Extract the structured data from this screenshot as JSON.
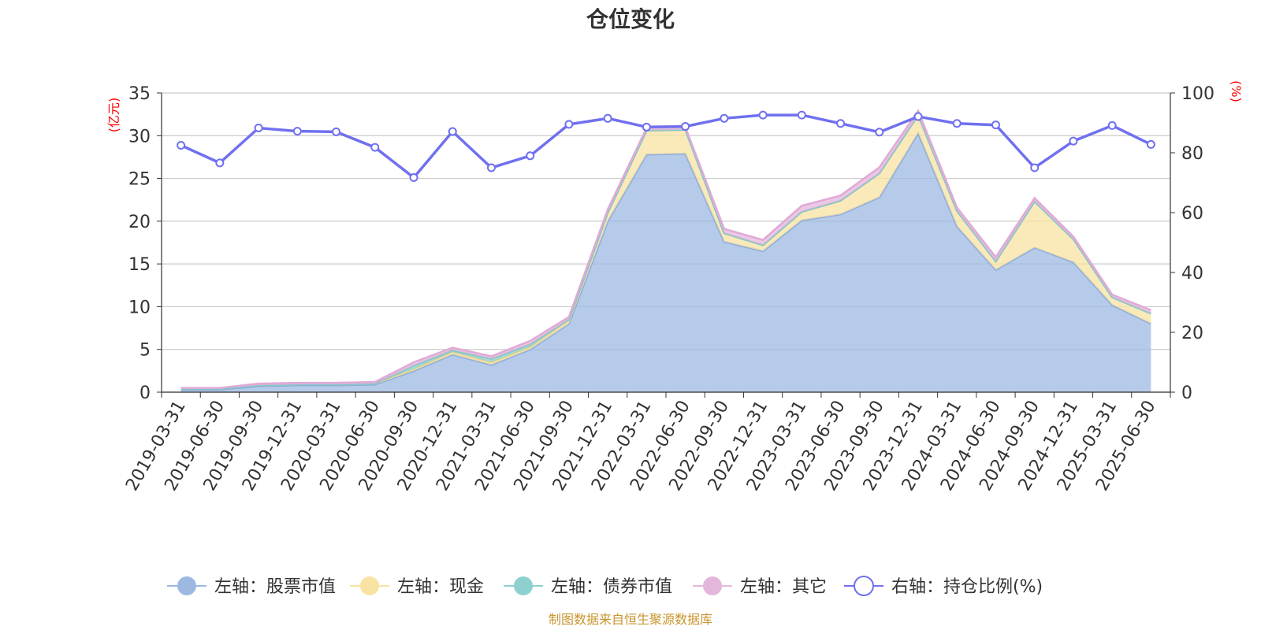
{
  "chart_data": {
    "type": "area",
    "title": "仓位变化",
    "left_axis_unit": "(亿元)",
    "right_axis_unit": "(%)",
    "ylim_left": [
      0,
      35
    ],
    "yticks_left": [
      "0",
      "5",
      "10",
      "15",
      "20",
      "25",
      "30",
      "35"
    ],
    "ylim_right": [
      0,
      100
    ],
    "yticks_right": [
      "0",
      "20",
      "40",
      "60",
      "80",
      "100"
    ],
    "grid": true,
    "legend_position": "bottom",
    "categories": [
      "2019-03-31",
      "2019-06-30",
      "2019-09-30",
      "2019-12-31",
      "2020-03-31",
      "2020-06-30",
      "2020-09-30",
      "2020-12-31",
      "2021-03-31",
      "2021-06-30",
      "2021-09-30",
      "2021-12-31",
      "2022-03-31",
      "2022-06-30",
      "2022-09-30",
      "2022-12-31",
      "2023-03-31",
      "2023-06-30",
      "2023-09-30",
      "2023-12-31",
      "2024-03-31",
      "2024-06-30",
      "2024-09-30",
      "2024-12-31",
      "2025-03-31",
      "2025-06-30"
    ],
    "series": [
      {
        "name": "左轴：股票市值",
        "axis": "left",
        "color": "#9db9e2",
        "values": [
          0.3,
          0.3,
          0.7,
          0.8,
          0.8,
          0.9,
          2.5,
          4.4,
          3.2,
          5.0,
          8.0,
          20.0,
          27.8,
          27.9,
          17.6,
          16.5,
          20.1,
          20.8,
          22.8,
          30.3,
          19.4,
          14.3,
          16.9,
          15.2,
          10.2,
          8.0
        ]
      },
      {
        "name": "左轴：现金",
        "axis": "left",
        "color": "#f8e3a3",
        "values": [
          0.1,
          0.1,
          0.1,
          0.1,
          0.1,
          0.1,
          0.2,
          0.3,
          0.3,
          0.3,
          0.4,
          1.0,
          2.8,
          2.8,
          1.0,
          0.7,
          1.0,
          1.6,
          2.8,
          2.1,
          1.8,
          1.0,
          5.4,
          2.7,
          0.9,
          1.2
        ]
      },
      {
        "name": "左轴：债券市值",
        "axis": "left",
        "color": "#8ed0d0",
        "values": [
          0.0,
          0.0,
          0.0,
          0.0,
          0.0,
          0.0,
          0.4,
          0.2,
          0.4,
          0.3,
          0.1,
          0.0,
          0.0,
          0.0,
          0.0,
          0.0,
          0.0,
          0.0,
          0.0,
          0.0,
          0.0,
          0.0,
          0.0,
          0.0,
          0.0,
          0.0
        ]
      },
      {
        "name": "左轴：其它",
        "axis": "left",
        "color": "#e5b6db",
        "values": [
          0.1,
          0.1,
          0.2,
          0.2,
          0.2,
          0.2,
          0.4,
          0.3,
          0.3,
          0.4,
          0.3,
          0.4,
          0.3,
          0.3,
          0.5,
          0.6,
          0.7,
          0.6,
          0.7,
          0.5,
          0.4,
          0.5,
          0.4,
          0.3,
          0.3,
          0.4
        ]
      },
      {
        "name": "右轴：持仓比例(%)",
        "axis": "right",
        "color": "#7070f0",
        "values": [
          82.5,
          76.6,
          88.3,
          87.2,
          87.0,
          81.8,
          71.7,
          87.1,
          75.0,
          79.0,
          89.5,
          91.5,
          88.6,
          88.8,
          91.5,
          92.6,
          92.6,
          89.8,
          86.9,
          92.1,
          89.8,
          89.3,
          75.0,
          83.9,
          89.1,
          82.8
        ]
      }
    ]
  },
  "footer": {
    "source": "制图数据来自恒生聚源数据库"
  }
}
